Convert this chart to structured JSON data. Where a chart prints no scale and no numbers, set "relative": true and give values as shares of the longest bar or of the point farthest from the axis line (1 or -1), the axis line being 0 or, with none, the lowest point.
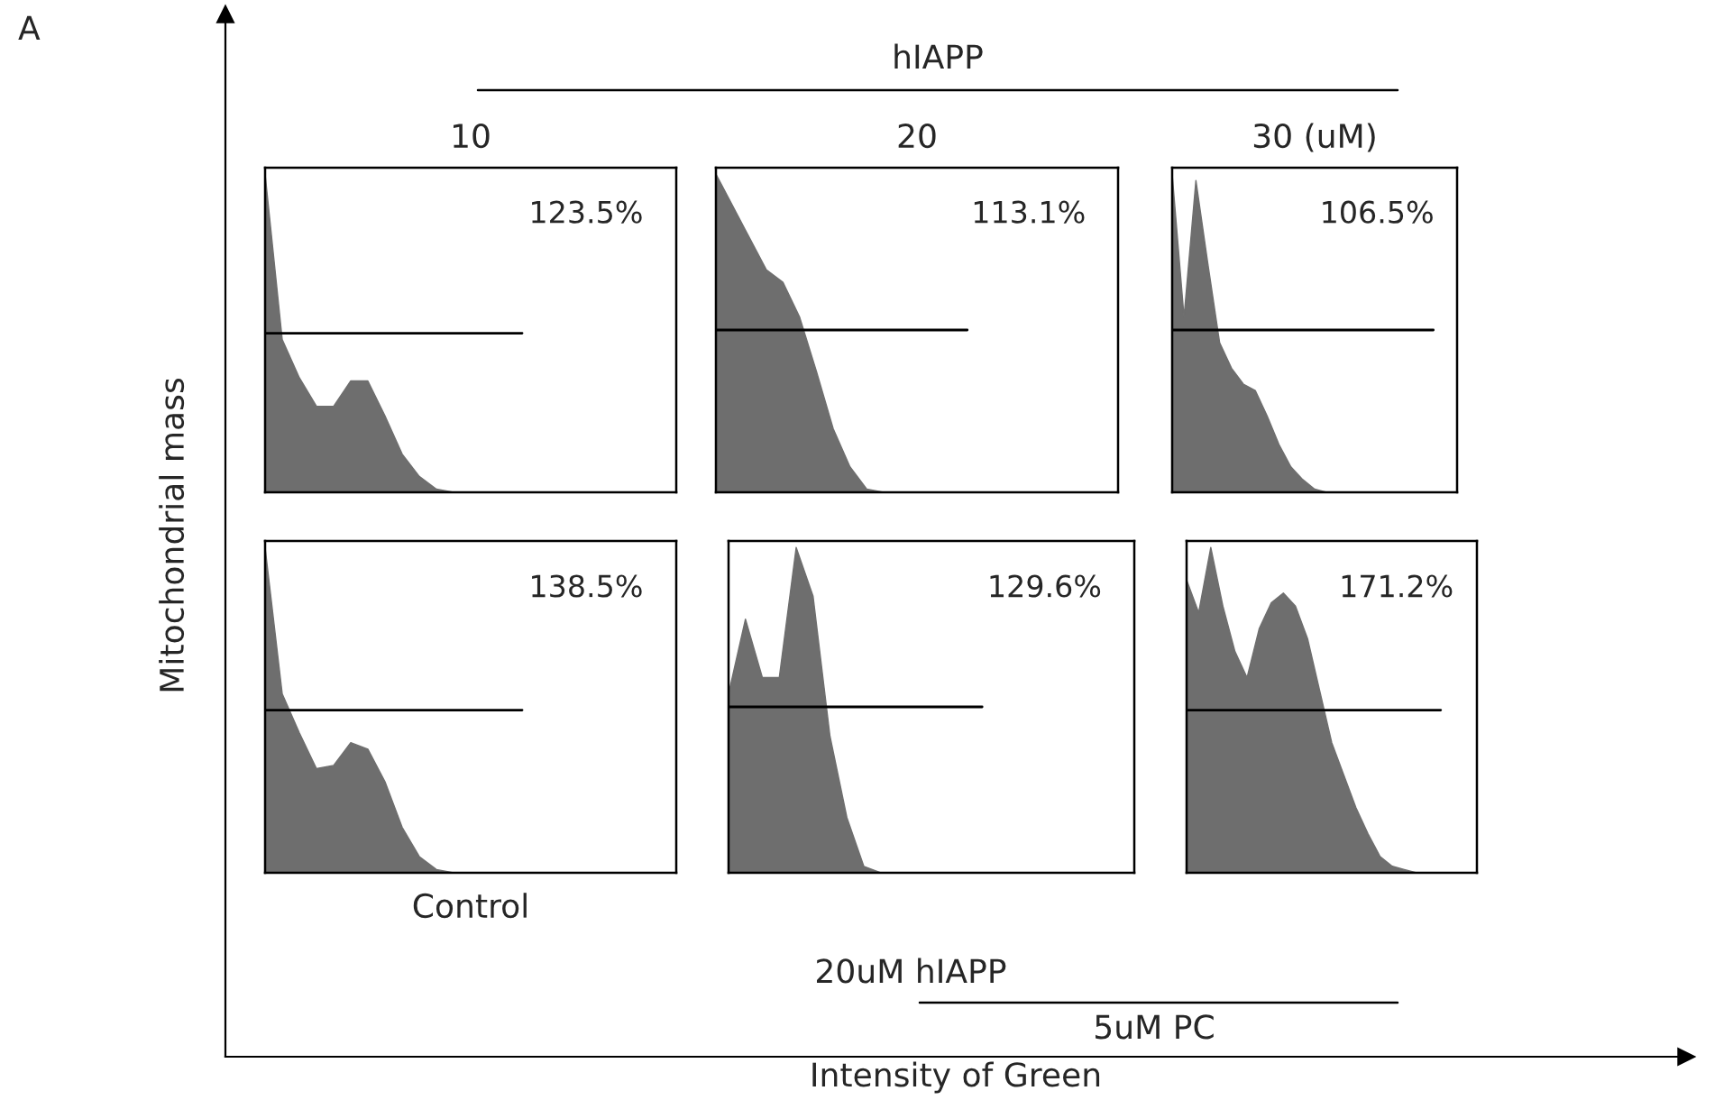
{
  "chart_data": [
    {
      "type": "other",
      "xlabel": "Intensity of Green",
      "ylabel": "Mitochondrial mass",
      "annotations": [
        "A",
        "hIAPP",
        "20uM hIAPP",
        "5uM PC"
      ]
    },
    {
      "type": "area",
      "title": "10",
      "relative": true,
      "annotations": [
        "123.5%"
      ],
      "categories": [
        null,
        null,
        null,
        null,
        null,
        null,
        null,
        null,
        null,
        null,
        null,
        null,
        null,
        null,
        null,
        null,
        null,
        null,
        null,
        null,
        null,
        null,
        null,
        null,
        null
      ],
      "series": [
        {
          "color": "#6e6e6e",
          "values": [
            1.0,
            0.48,
            0.36,
            0.27,
            0.27,
            0.35,
            0.35,
            0.24,
            0.12,
            0.05,
            0.01,
            0,
            0,
            0,
            0,
            0,
            0,
            0,
            0,
            0,
            0,
            0,
            0,
            0,
            0
          ]
        },
        {
          "type": "line",
          "color": "#000000",
          "values": [
            0.5,
            0.5,
            0.5,
            0.5,
            0.5,
            0.5,
            0.5,
            0.5,
            0.5,
            0.5,
            0.5,
            0.5,
            0.5,
            0.5,
            0.5,
            0.5,
            null,
            null,
            null,
            null,
            null,
            null,
            null,
            null,
            null
          ]
        }
      ]
    },
    {
      "type": "area",
      "title": "20",
      "relative": true,
      "annotations": [
        "113.1%"
      ],
      "categories": [
        null,
        null,
        null,
        null,
        null,
        null,
        null,
        null,
        null,
        null,
        null,
        null,
        null,
        null,
        null,
        null,
        null,
        null,
        null,
        null,
        null,
        null,
        null,
        null,
        null
      ],
      "series": [
        {
          "color": "#6e6e6e",
          "values": [
            1.0,
            0.9,
            0.8,
            0.7,
            0.66,
            0.55,
            0.38,
            0.2,
            0.08,
            0.01,
            0,
            0,
            0,
            0,
            0,
            0,
            0,
            0,
            0,
            0,
            0,
            0,
            0,
            0,
            0
          ]
        },
        {
          "type": "line",
          "color": "#000000",
          "values": [
            0.51,
            0.51,
            0.51,
            0.51,
            0.51,
            0.51,
            0.51,
            0.51,
            0.51,
            0.51,
            0.51,
            0.51,
            0.51,
            0.51,
            0.51,
            0.51,
            null,
            null,
            null,
            null,
            null,
            null,
            null,
            null,
            null
          ]
        }
      ]
    },
    {
      "type": "area",
      "title": "30 (uM)",
      "relative": true,
      "annotations": [
        "106.5%"
      ],
      "categories": [
        null,
        null,
        null,
        null,
        null,
        null,
        null,
        null,
        null,
        null,
        null,
        null,
        null,
        null,
        null,
        null,
        null,
        null,
        null,
        null,
        null,
        null,
        null,
        null,
        null
      ],
      "series": [
        {
          "color": "#6e6e6e",
          "values": [
            1.0,
            0.55,
            0.98,
            0.72,
            0.47,
            0.39,
            0.34,
            0.32,
            0.24,
            0.15,
            0.08,
            0.04,
            0.01,
            0,
            0,
            0,
            0,
            0,
            0,
            0,
            0,
            0,
            0,
            0,
            0
          ]
        },
        {
          "type": "line",
          "color": "#000000",
          "values": [
            0.51,
            0.51,
            0.51,
            0.51,
            0.51,
            0.51,
            0.51,
            0.51,
            0.51,
            0.51,
            0.51,
            0.51,
            0.51,
            0.51,
            0.51,
            0.51,
            0.51,
            0.51,
            0.51,
            0.51,
            0.51,
            0.51,
            0.51,
            null,
            null
          ]
        }
      ]
    },
    {
      "type": "area",
      "xlabel": "Control",
      "relative": true,
      "annotations": [
        "138.5%"
      ],
      "categories": [
        null,
        null,
        null,
        null,
        null,
        null,
        null,
        null,
        null,
        null,
        null,
        null,
        null,
        null,
        null,
        null,
        null,
        null,
        null,
        null,
        null,
        null,
        null,
        null,
        null
      ],
      "series": [
        {
          "color": "#6e6e6e",
          "values": [
            1.0,
            0.55,
            0.43,
            0.32,
            0.33,
            0.4,
            0.38,
            0.28,
            0.14,
            0.05,
            0.01,
            0,
            0,
            0,
            0,
            0,
            0,
            0,
            0,
            0,
            0,
            0,
            0,
            0,
            0
          ]
        },
        {
          "type": "line",
          "color": "#000000",
          "values": [
            0.5,
            0.5,
            0.5,
            0.5,
            0.5,
            0.5,
            0.5,
            0.5,
            0.5,
            0.5,
            0.5,
            0.5,
            0.5,
            0.5,
            0.5,
            0.5,
            null,
            null,
            null,
            null,
            null,
            null,
            null,
            null,
            null
          ]
        }
      ]
    },
    {
      "type": "area",
      "relative": true,
      "annotations": [
        "129.6%"
      ],
      "categories": [
        null,
        null,
        null,
        null,
        null,
        null,
        null,
        null,
        null,
        null,
        null,
        null,
        null,
        null,
        null,
        null,
        null,
        null,
        null,
        null,
        null,
        null,
        null,
        null,
        null
      ],
      "series": [
        {
          "color": "#6e6e6e",
          "values": [
            0.55,
            0.78,
            0.6,
            0.6,
            1.0,
            0.85,
            0.42,
            0.17,
            0.02,
            0,
            0,
            0,
            0,
            0,
            0,
            0,
            0,
            0,
            0,
            0,
            0,
            0,
            0,
            0,
            0
          ]
        },
        {
          "type": "line",
          "color": "#000000",
          "values": [
            0.51,
            0.51,
            0.51,
            0.51,
            0.51,
            0.51,
            0.51,
            0.51,
            0.51,
            0.51,
            0.51,
            0.51,
            0.51,
            0.51,
            0.51,
            0.51,
            null,
            null,
            null,
            null,
            null,
            null,
            null,
            null,
            null
          ]
        }
      ]
    },
    {
      "type": "area",
      "relative": true,
      "annotations": [
        "171.2%"
      ],
      "categories": [
        null,
        null,
        null,
        null,
        null,
        null,
        null,
        null,
        null,
        null,
        null,
        null,
        null,
        null,
        null,
        null,
        null,
        null,
        null,
        null,
        null,
        null,
        null,
        null,
        null
      ],
      "series": [
        {
          "color": "#6e6e6e",
          "values": [
            0.9,
            0.8,
            1.0,
            0.82,
            0.68,
            0.6,
            0.75,
            0.83,
            0.86,
            0.82,
            0.72,
            0.56,
            0.4,
            0.3,
            0.2,
            0.12,
            0.05,
            0.02,
            0.01,
            0,
            0,
            0,
            0,
            0,
            0
          ]
        },
        {
          "type": "line",
          "color": "#000000",
          "values": [
            0.5,
            0.5,
            0.5,
            0.5,
            0.5,
            0.5,
            0.5,
            0.5,
            0.5,
            0.5,
            0.5,
            0.5,
            0.5,
            0.5,
            0.5,
            0.5,
            0.5,
            0.5,
            0.5,
            0.5,
            0.5,
            0.5,
            null,
            null,
            null
          ]
        }
      ]
    }
  ]
}
